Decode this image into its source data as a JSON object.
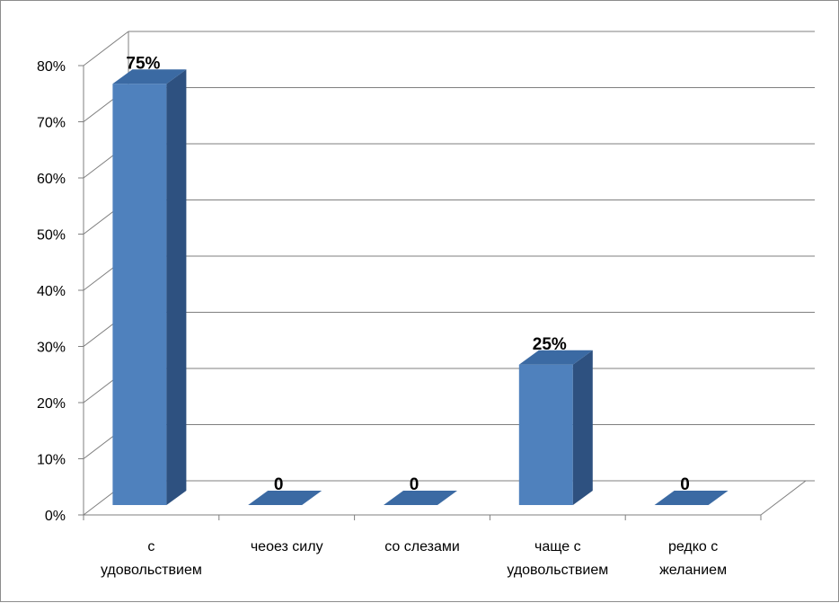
{
  "chart_data": {
    "type": "bar",
    "categories": [
      [
        "с",
        "удовольствием"
      ],
      [
        "чеоез силу"
      ],
      [
        "со слезами"
      ],
      [
        "чаще с",
        "удовольствием"
      ],
      [
        "редко с",
        "желанием"
      ]
    ],
    "values": [
      75,
      0,
      0,
      25,
      0
    ],
    "data_labels": [
      "75%",
      "0",
      "0",
      "25%",
      "0"
    ],
    "ylim": [
      0,
      80
    ],
    "yticks": [
      "0%",
      "10%",
      "20%",
      "30%",
      "40%",
      "50%",
      "60%",
      "70%",
      "80%"
    ],
    "grid": true,
    "three_d": true,
    "colors": {
      "bar_front": "#4f81bd",
      "bar_side": "#2e5180",
      "bar_top": "#3b6aa3",
      "grid": "#7f7f7f"
    }
  }
}
